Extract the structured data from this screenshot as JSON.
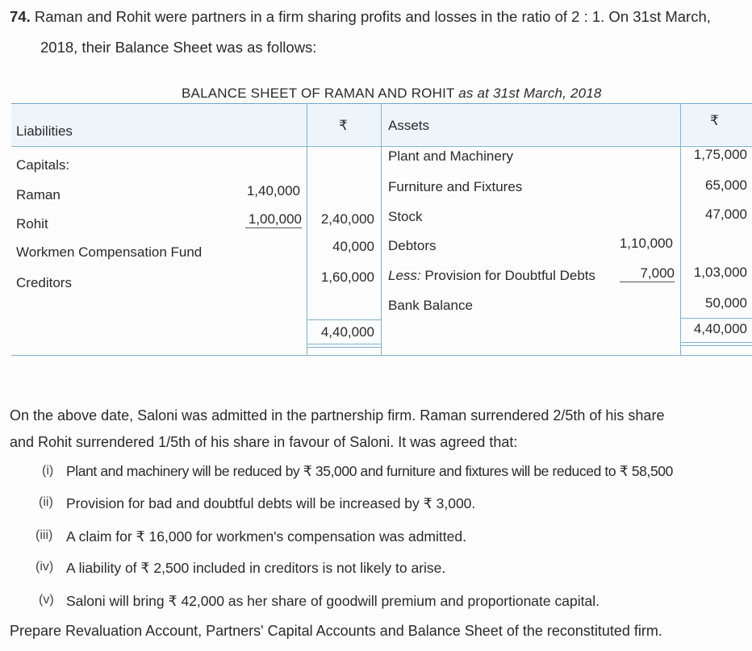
{
  "question": {
    "number": "74.",
    "line1": "Raman and Rohit were partners in a firm sharing profits and losses in the ratio of 2 : 1. On 31st March,",
    "line2": "2018, their Balance Sheet was as follows:"
  },
  "balance_sheet": {
    "caption": "BALANCE SHEET OF RAMAN AND ROHIT",
    "caption_date": "as at 31st March, 2018",
    "headers": {
      "liabilities": "Liabilities",
      "rupee1": "₹",
      "assets": "Assets",
      "rupee2": "₹"
    },
    "liabilities": [
      {
        "label": "Capitals:",
        "sub": "",
        "total": ""
      },
      {
        "label": "Raman",
        "sub": "1,40,000",
        "total": ""
      },
      {
        "label": "Rohit",
        "sub": "1,00,000",
        "total": "2,40,000"
      },
      {
        "label": "Workmen Compensation Fund",
        "sub": "",
        "total": "40,000"
      },
      {
        "label": "Creditors",
        "sub": "",
        "total": "1,60,000"
      }
    ],
    "liabilities_total": "4,40,000",
    "assets": [
      {
        "label": "Plant and Machinery",
        "sub": "",
        "total": "1,75,000"
      },
      {
        "label": "Furniture and Fixtures",
        "sub": "",
        "total": "65,000"
      },
      {
        "label": "Stock",
        "sub": "",
        "total": "47,000"
      },
      {
        "label": "Debtors",
        "sub": "1,10,000",
        "total": ""
      },
      {
        "label_prefix": "Less:",
        "label": "Provision for Doubtful Debts",
        "sub": "7,000",
        "total": "1,03,000"
      },
      {
        "label": "Bank Balance",
        "sub": "",
        "total": "50,000"
      }
    ],
    "assets_total": "4,40,000"
  },
  "body": {
    "para1": "On the above date, Saloni was admitted in the partnership firm. Raman surrendered 2/5th of his share",
    "para2": "and Rohit surrendered 1/5th of his share in favour of Saloni. It was agreed that:",
    "items": [
      {
        "num": "(i)",
        "text": "Plant and machinery will be reduced by ₹ 35,000 and furniture and fixtures will be reduced to ₹ 58,500"
      },
      {
        "num": "(ii)",
        "text": "Provision for bad and doubtful debts will be increased by ₹ 3,000."
      },
      {
        "num": "(iii)",
        "text": "A claim for ₹ 16,000 for workmen's compensation was admitted."
      },
      {
        "num": "(iv)",
        "text": "A liability of ₹ 2,500 included in creditors is not likely to arise."
      },
      {
        "num": "(v)",
        "text": "Saloni will bring ₹ 42,000 as her share of goodwill premium and proportionate capital."
      }
    ],
    "instruction": "Prepare Revaluation Account, Partners' Capital Accounts and Balance Sheet of the reconstituted firm."
  }
}
